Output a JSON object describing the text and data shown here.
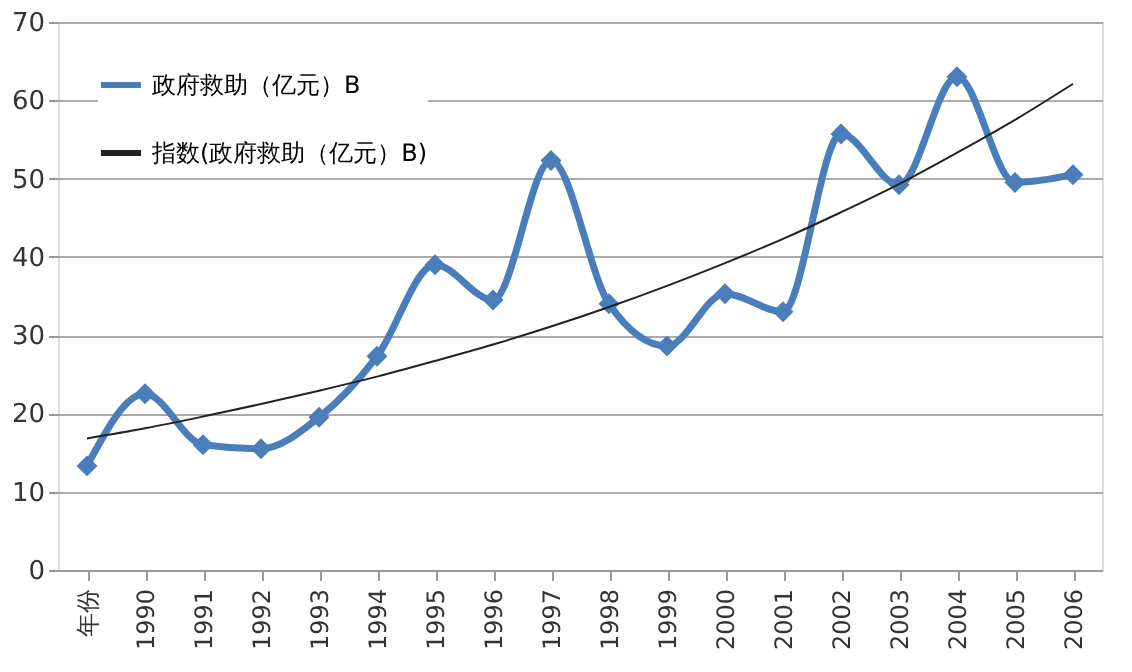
{
  "chart_data": {
    "type": "line",
    "categories": [
      "年份",
      "1990",
      "1991",
      "1992",
      "1993",
      "1994",
      "1995",
      "1996",
      "1997",
      "1998",
      "1999",
      "2000",
      "2001",
      "2002",
      "2003",
      "2004",
      "2005",
      "2006"
    ],
    "series": [
      {
        "name": "政府救助（亿元）B",
        "color": "#4a7ebb",
        "marker": "diamond",
        "line_style": "solid",
        "values": [
          13.3,
          22.5,
          16,
          15.5,
          19.5,
          27.3,
          39,
          34.5,
          52.3,
          34,
          28.6,
          35.3,
          33,
          55.7,
          49.2,
          63,
          49.5,
          50.5
        ]
      },
      {
        "name": "指数(政府救助（亿元）B)",
        "color": "#222222",
        "marker": "none",
        "line_style": "solid",
        "values": [
          16.8,
          18.1,
          19.6,
          21.2,
          22.9,
          24.7,
          26.7,
          28.8,
          31.1,
          33.6,
          36.3,
          39.2,
          42.3,
          45.7,
          49.3,
          53.3,
          57.5,
          62.1
        ]
      }
    ],
    "ylim": [
      0,
      70
    ],
    "yticks": [
      0,
      10,
      20,
      30,
      40,
      50,
      60,
      70
    ],
    "grid": "y",
    "legend": "top left"
  }
}
